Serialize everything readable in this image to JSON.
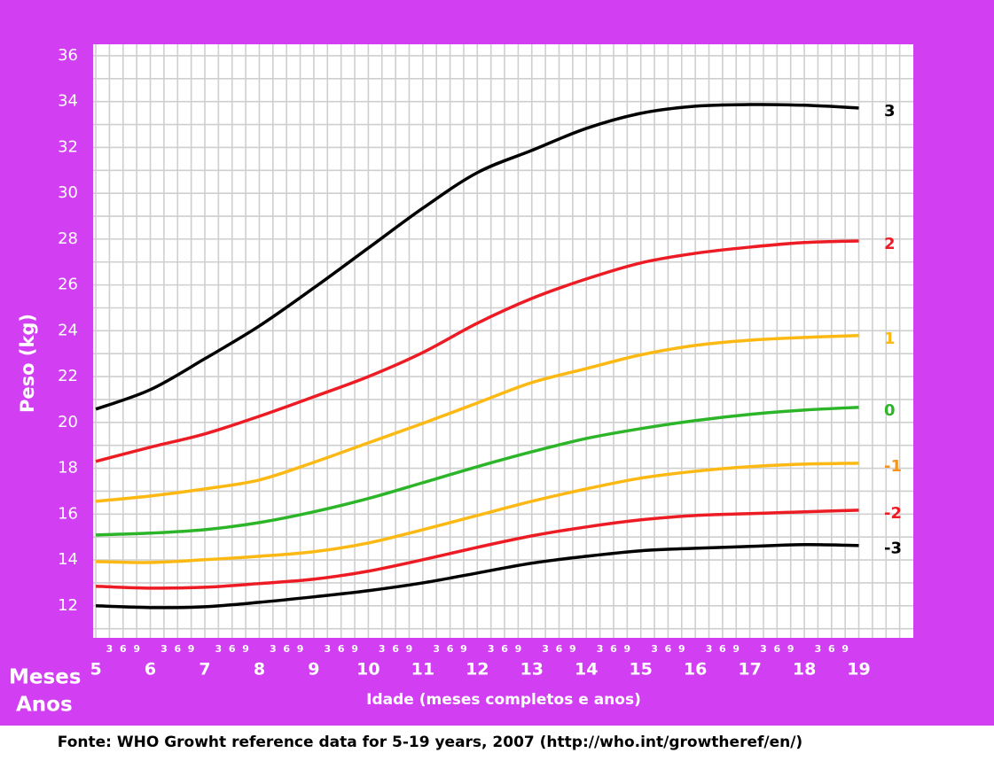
{
  "chart_data": {
    "type": "line",
    "ylabel": "Peso (kg)",
    "xlabel": "Idade (meses completos e anos)",
    "month_row_label": "Meses",
    "year_row_label": "Anos",
    "source": "Fonte: WHO Growht reference data for 5-19 years, 2007 (http://who.int/growtheref/en/)",
    "x": [
      5,
      6,
      7,
      8,
      9,
      10,
      11,
      12,
      13,
      14,
      15,
      16,
      17,
      18,
      19
    ],
    "xlim": [
      4.95,
      20
    ],
    "xticks": [
      5,
      6,
      7,
      8,
      9,
      10,
      11,
      12,
      13,
      14,
      15,
      16,
      17,
      18,
      19
    ],
    "month_ticks": [
      3,
      6,
      9
    ],
    "ylim": [
      10.6,
      36.5
    ],
    "yticks": [
      12,
      14,
      16,
      18,
      20,
      22,
      24,
      26,
      28,
      30,
      32,
      34,
      36
    ],
    "y_minor_ticks": [
      11,
      13,
      15,
      17,
      19,
      21,
      23,
      25,
      27,
      29,
      31,
      33,
      35
    ],
    "grid": true,
    "series": [
      {
        "name": "3",
        "color": "#000000",
        "label_color": "#000000",
        "values": [
          20.58,
          21.43,
          22.78,
          24.21,
          25.87,
          27.61,
          29.35,
          30.9,
          31.87,
          32.83,
          33.49,
          33.8,
          33.87,
          33.84,
          33.72
        ]
      },
      {
        "name": "2",
        "color": "#ed1c24",
        "label_color": "#ed1c24",
        "values": [
          18.3,
          18.92,
          19.5,
          20.27,
          21.12,
          22.0,
          23.05,
          24.33,
          25.41,
          26.26,
          26.96,
          27.38,
          27.65,
          27.85,
          27.92
        ]
      },
      {
        "name": "1",
        "color": "#fdb913",
        "label_color": "#fdb913",
        "values": [
          16.56,
          16.79,
          17.1,
          17.49,
          18.26,
          19.11,
          19.96,
          20.85,
          21.74,
          22.35,
          22.95,
          23.36,
          23.59,
          23.71,
          23.79
        ]
      },
      {
        "name": "0",
        "color": "#2db52a",
        "label_color": "#2db52a",
        "values": [
          15.09,
          15.17,
          15.32,
          15.63,
          16.1,
          16.68,
          17.37,
          18.07,
          18.72,
          19.3,
          19.73,
          20.08,
          20.35,
          20.54,
          20.66
        ]
      },
      {
        "name": "-1",
        "color": "#fdb913",
        "label_color": "#f7941d",
        "values": [
          13.93,
          13.89,
          14.01,
          14.16,
          14.36,
          14.74,
          15.32,
          15.94,
          16.56,
          17.1,
          17.57,
          17.87,
          18.07,
          18.18,
          18.22
        ]
      },
      {
        "name": "-2",
        "color": "#ed1c24",
        "label_color": "#ed1c24",
        "values": [
          12.85,
          12.77,
          12.81,
          12.97,
          13.16,
          13.51,
          14.01,
          14.55,
          15.05,
          15.44,
          15.75,
          15.94,
          16.02,
          16.1,
          16.17
        ]
      },
      {
        "name": "-3",
        "color": "#000000",
        "label_color": "#000000",
        "values": [
          12.0,
          11.92,
          11.96,
          12.15,
          12.39,
          12.66,
          13.0,
          13.43,
          13.86,
          14.16,
          14.4,
          14.51,
          14.59,
          14.67,
          14.63
        ]
      }
    ]
  }
}
